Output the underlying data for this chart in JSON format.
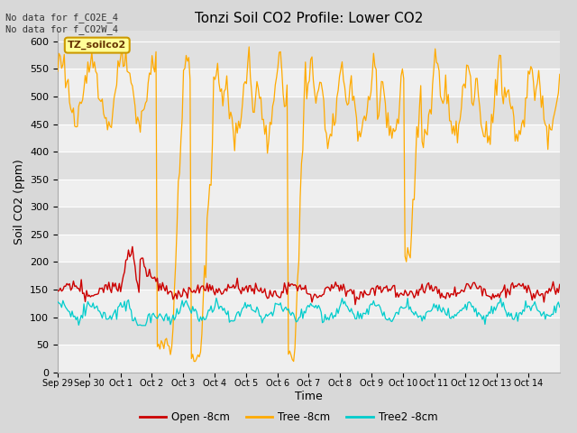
{
  "title": "Tonzi Soil CO2 Profile: Lower CO2",
  "ylabel": "Soil CO2 (ppm)",
  "xlabel": "Time",
  "top_left_text": "No data for f_CO2E_4\nNo data for f_CO2W_4",
  "legend_label_text": "TZ_soilco2",
  "ylim": [
    0,
    620
  ],
  "yticks": [
    0,
    50,
    100,
    150,
    200,
    250,
    300,
    350,
    400,
    450,
    500,
    550,
    600
  ],
  "xtick_labels": [
    "Sep 29",
    "Sep 30",
    "Oct 1",
    "Oct 2",
    "Oct 3",
    "Oct 4",
    "Oct 5",
    "Oct 6",
    "Oct 7",
    "Oct 8",
    "Oct 9",
    "Oct 10",
    "Oct 11",
    "Oct 12",
    "Oct 13",
    "Oct 14"
  ],
  "line_colors": {
    "open": "#cc0000",
    "tree": "#ffaa00",
    "tree2": "#00cccc"
  },
  "legend_labels": [
    "Open -8cm",
    "Tree -8cm",
    "Tree2 -8cm"
  ],
  "bg_color": "#d8d8d8",
  "plot_bg_color": "#e0e0e0",
  "grid_color": "#ffffff",
  "label_box_color": "#ffff99",
  "label_box_edge": "#cc9900"
}
